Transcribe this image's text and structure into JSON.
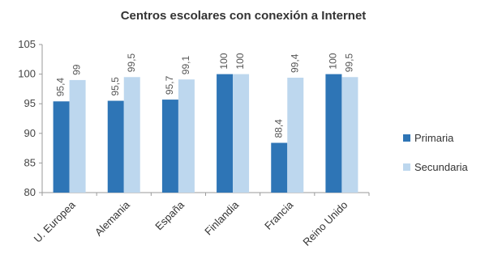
{
  "chart_data": {
    "type": "bar",
    "title": "Centros escolares con conexión a Internet",
    "xlabel": "",
    "ylabel": "",
    "categories": [
      "U. Europea",
      "Alemania",
      "España",
      "Finlandia",
      "Francia",
      "Reino Unido"
    ],
    "series": [
      {
        "name": "Primaria",
        "values": [
          95.4,
          95.5,
          95.7,
          100,
          88.4,
          100
        ],
        "labels": [
          "95,4",
          "95,5",
          "95,7",
          "100",
          "88,4",
          "100"
        ],
        "color": "#2e75b6"
      },
      {
        "name": "Secundaria",
        "values": [
          99,
          99.5,
          99.1,
          100,
          99.4,
          99.5
        ],
        "labels": [
          "99",
          "99,5",
          "99,1",
          "100",
          "99,4",
          "99,5"
        ],
        "color": "#bdd7ee"
      }
    ],
    "ylim": [
      80,
      105
    ],
    "yticks": [
      80,
      85,
      90,
      95,
      100,
      105
    ],
    "grid": false,
    "legend_position": "right"
  }
}
